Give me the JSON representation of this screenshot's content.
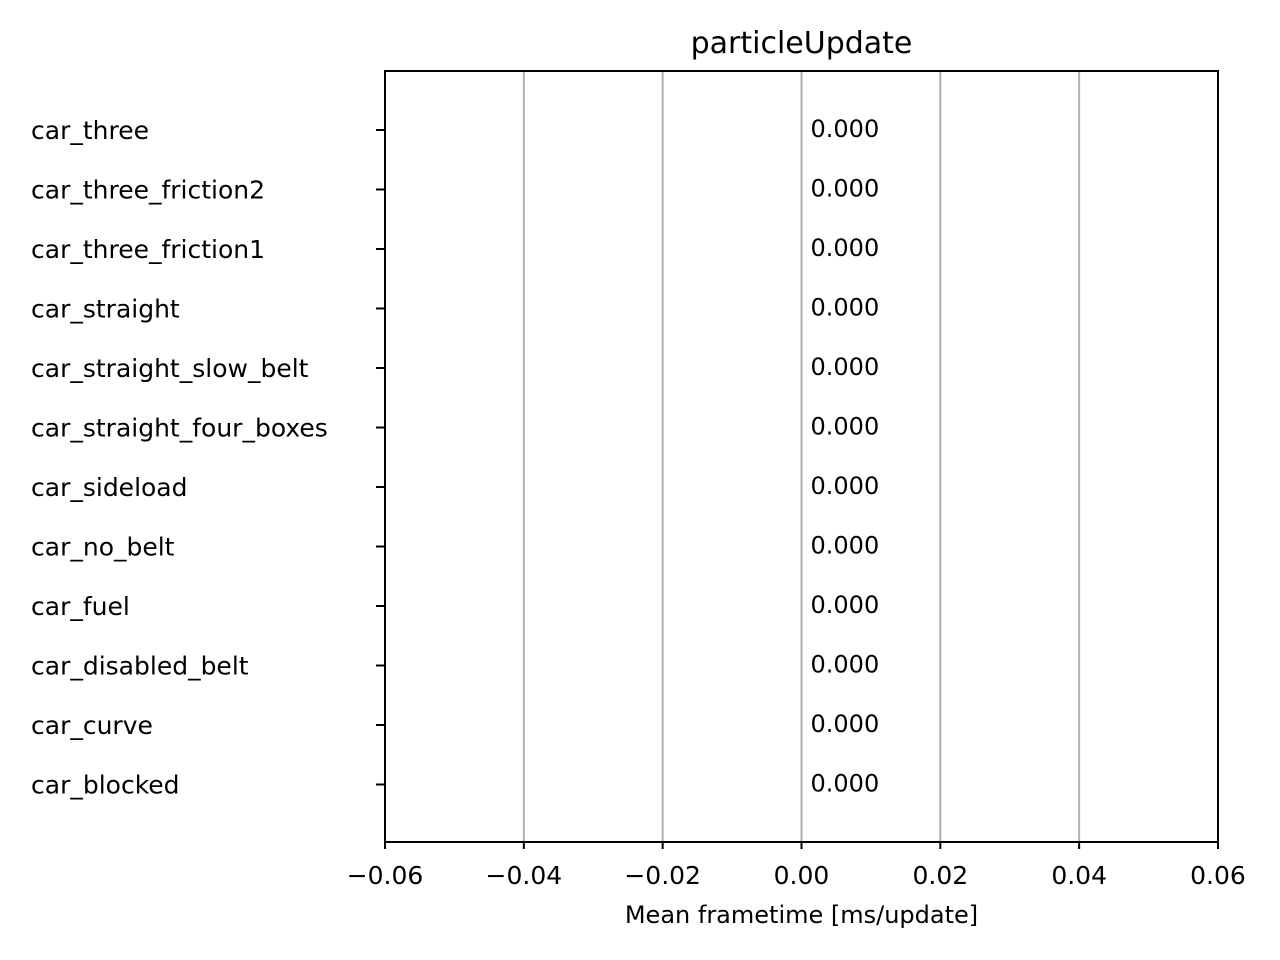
{
  "chart_data": {
    "type": "bar",
    "orientation": "horizontal",
    "title": "particleUpdate",
    "xlabel": "Mean frametime [ms/update]",
    "ylabel": "",
    "categories": [
      "car_three",
      "car_three_friction2",
      "car_three_friction1",
      "car_straight",
      "car_straight_slow_belt",
      "car_straight_four_boxes",
      "car_sideload",
      "car_no_belt",
      "car_fuel",
      "car_disabled_belt",
      "car_curve",
      "car_blocked"
    ],
    "values": [
      0,
      0,
      0,
      0,
      0,
      0,
      0,
      0,
      0,
      0,
      0,
      0
    ],
    "data_labels": [
      "0.000",
      "0.000",
      "0.000",
      "0.000",
      "0.000",
      "0.000",
      "0.000",
      "0.000",
      "0.000",
      "0.000",
      "0.000",
      "0.000"
    ],
    "xlim": [
      -0.06,
      0.06
    ],
    "xticks": [
      -0.06,
      -0.04,
      -0.02,
      0.0,
      0.02,
      0.04,
      0.06
    ],
    "xtick_labels": [
      "−0.06",
      "−0.04",
      "−0.02",
      "0.00",
      "0.02",
      "0.04",
      "0.06"
    ],
    "grid": "x-major",
    "legend": "none"
  }
}
